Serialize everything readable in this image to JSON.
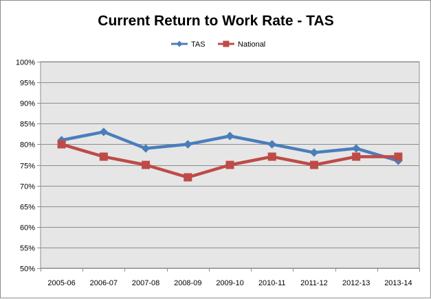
{
  "chart_data": {
    "type": "line",
    "title": "Current Return to Work Rate - TAS",
    "xlabel": "",
    "ylabel": "",
    "categories": [
      "2005-06",
      "2006-07",
      "2007-08",
      "2008-09",
      "2009-10",
      "2010-11",
      "2011-12",
      "2012-13",
      "2013-14"
    ],
    "ylim": [
      50,
      100
    ],
    "ytick_step": 5,
    "ytick_suffix": "%",
    "grid": true,
    "legend_position": "top",
    "series": [
      {
        "name": "TAS",
        "color": "#4a7ebb",
        "marker": "diamond",
        "values": [
          81,
          83,
          79,
          80,
          82,
          80,
          78,
          79,
          76
        ]
      },
      {
        "name": "National",
        "color": "#be4b48",
        "marker": "square",
        "values": [
          80,
          77,
          75,
          72,
          75,
          77,
          75,
          77,
          77
        ]
      }
    ],
    "plot_background": "#e6e6e6"
  }
}
